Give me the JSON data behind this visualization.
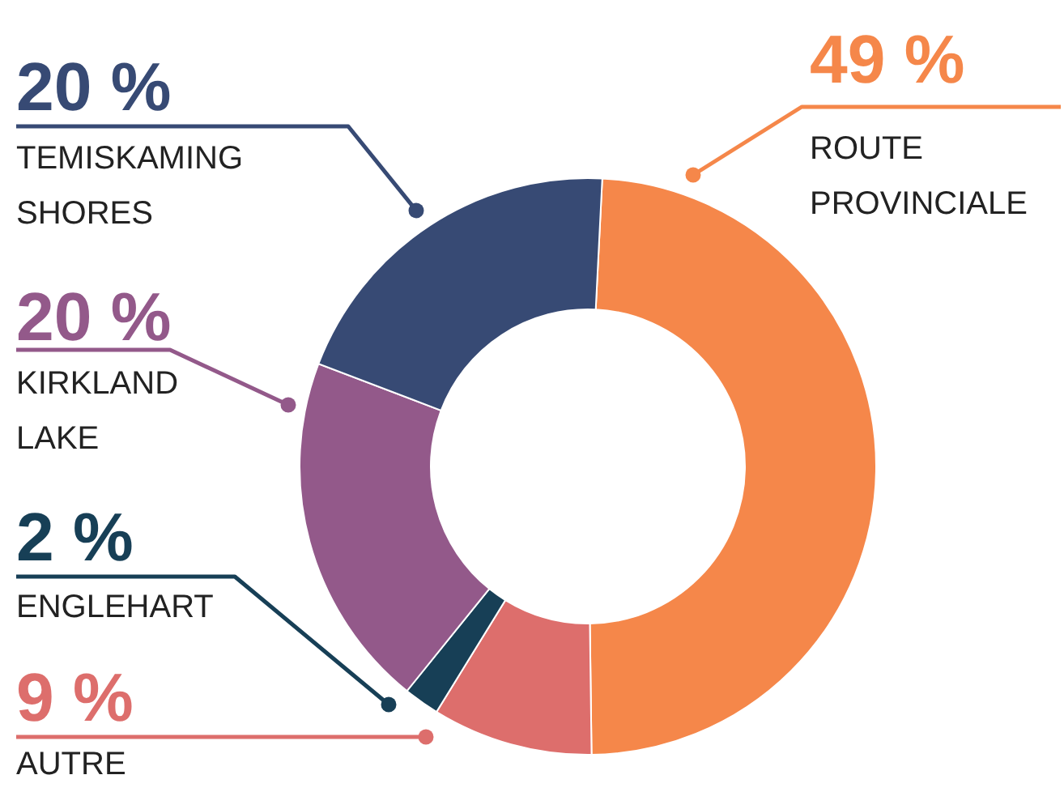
{
  "chart_data": {
    "type": "donut",
    "categories": [
      "ROUTE PROVINCIALE",
      "AUTRE",
      "ENGLEHART",
      "KIRKLAND LAKE",
      "TEMISKAMING SHORES"
    ],
    "values": [
      49,
      9,
      2,
      20,
      20
    ],
    "colors": [
      "#f5874a",
      "#dd6e6c",
      "#173f56",
      "#93598a",
      "#374a74"
    ],
    "value_labels": [
      "49 %",
      "9 %",
      "2 %",
      "20 %",
      "20 %"
    ]
  }
}
